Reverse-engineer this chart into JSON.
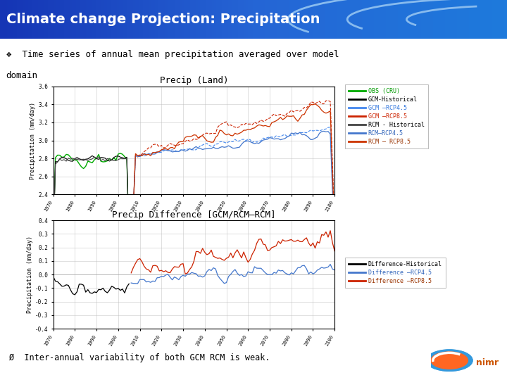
{
  "title": "Climate change Projection: Precipitation",
  "title_bg_color_left": "#1535b5",
  "title_bg_color_right": "#2060d0",
  "title_text_color": "#ffffff",
  "subtitle_line1": "❖  Time series of annual mean precipitation averaged over model",
  "subtitle_line2": "domain",
  "subtitle_bg": "#ddeeff",
  "plot1_title": "Precip (Land)",
  "plot2_title": "Precip Difference [GCM/RCM–RCM]",
  "ylabel": "Precipitation (mm/day)",
  "xmin": 1970,
  "xmax": 2100,
  "plot1_ylim": [
    2.4,
    3.6
  ],
  "plot2_ylim": [
    -0.4,
    0.4
  ],
  "plot1_yticks": [
    2.4,
    2.6,
    2.8,
    3.0,
    3.2,
    3.4,
    3.6
  ],
  "plot2_yticks": [
    -0.4,
    -0.3,
    -0.2,
    -0.1,
    0.0,
    0.1,
    0.2,
    0.3,
    0.4
  ],
  "xticks": [
    1970,
    1980,
    1990,
    2000,
    2010,
    2020,
    2030,
    2040,
    2050,
    2060,
    2070,
    2080,
    2090,
    2100
  ],
  "legend1_entries": [
    "OBS (CRU)",
    "GCM-Historical",
    "GCM –RCP4.5",
    "GCM –RCP8.5",
    "RCM - Historical",
    "RCM–RCP4.5",
    "RCM – RCP8.5"
  ],
  "legend1_colors": [
    "#00aa00",
    "#000000",
    "#4488ee",
    "#cc2200",
    "#444444",
    "#4477cc",
    "#cc3300"
  ],
  "legend1_text_colors": [
    "#009900",
    "#000000",
    "#3377dd",
    "#cc2200",
    "#000000",
    "#3366bb",
    "#993300"
  ],
  "legend2_entries": [
    "Difference-Historical",
    "Difference –RCP4.5",
    "Difference –RCP8.5"
  ],
  "legend2_colors": [
    "#000000",
    "#4477cc",
    "#cc2200"
  ],
  "legend2_text_colors": [
    "#000000",
    "#3366bb",
    "#993300"
  ],
  "footer_text": "Ø  Inter-annual variability of both GCM RCM is weak.",
  "bg_color": "#ffffff",
  "panel_bg": "#ffffff",
  "grid_color": "#bbbbbb",
  "arc_color": "#88bbee"
}
